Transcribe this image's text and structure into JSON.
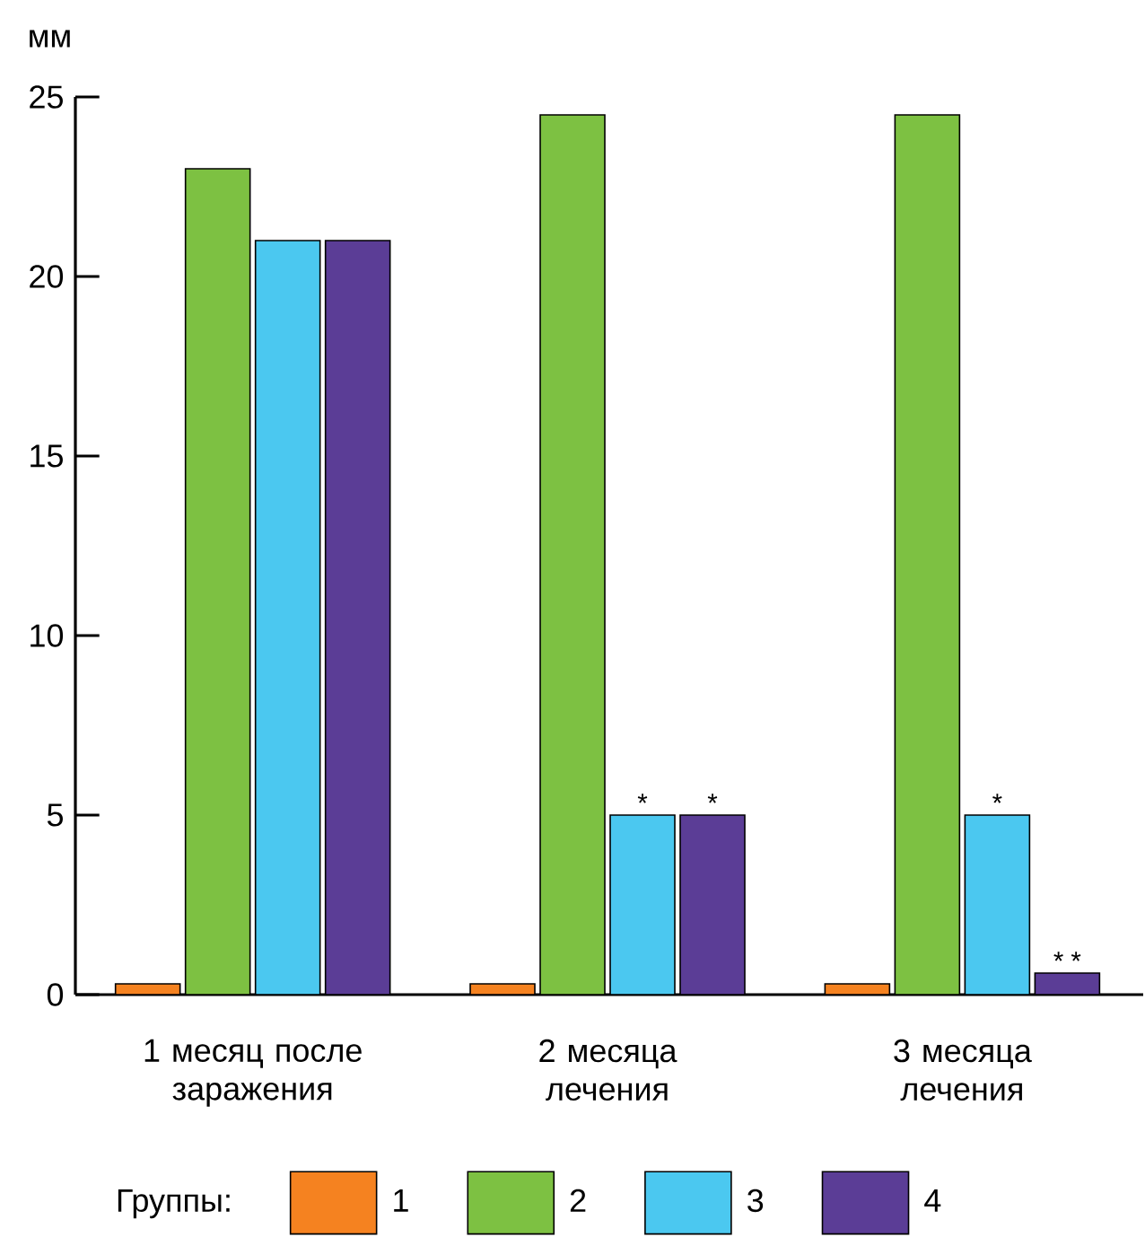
{
  "chart_data": {
    "type": "bar",
    "ylabel": "мм",
    "legend_title": "Группы:",
    "legend": "bottom",
    "categories": [
      "1 месяц после заражения",
      "2 месяца лечения",
      "3 месяца лечения"
    ],
    "ylim": [
      0,
      25
    ],
    "yticks": [
      0,
      5,
      10,
      15,
      20,
      25
    ],
    "series": [
      {
        "name": "1",
        "color": "#f58220",
        "values": [
          0.3,
          0.3,
          0.3
        ]
      },
      {
        "name": "2",
        "color": "#7dc142",
        "values": [
          23,
          24.5,
          24.5
        ]
      },
      {
        "name": "3",
        "color": "#4bc8f0",
        "values": [
          21,
          5,
          5
        ],
        "value_labels": [
          null,
          "*",
          "*"
        ]
      },
      {
        "name": "4",
        "color": "#5b3d96",
        "values": [
          21,
          5,
          0.6
        ],
        "value_labels": [
          null,
          "*",
          "* *"
        ]
      }
    ]
  }
}
